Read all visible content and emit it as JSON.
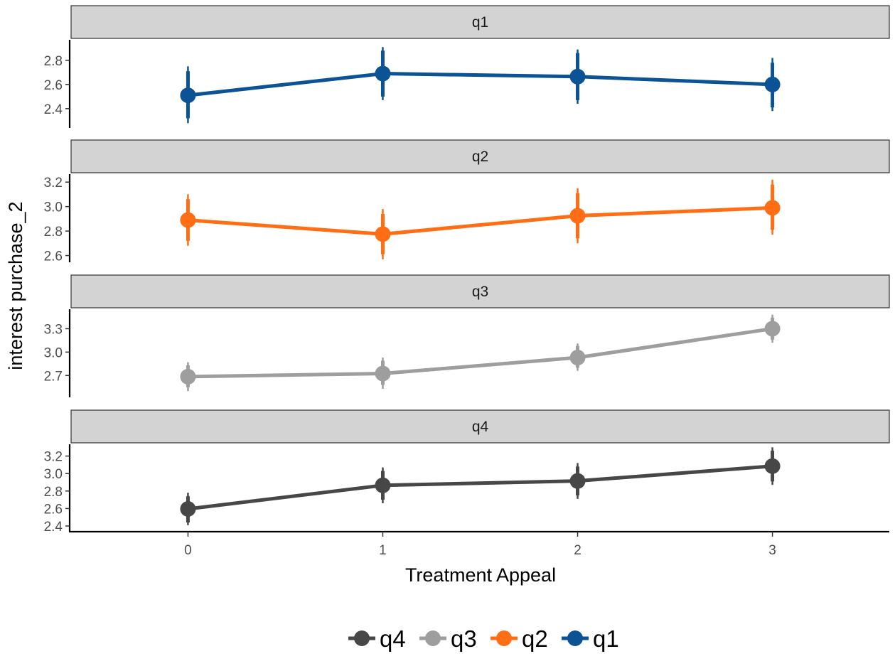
{
  "chart_data": {
    "type": "line",
    "xlabel": "Treatment Appeal",
    "ylabel": "interest purchase_2",
    "x": [
      0,
      1,
      2,
      3
    ],
    "xlim": [
      -0.6,
      3.6
    ],
    "legend_position": "bottom",
    "legend_order": [
      "q4",
      "q3",
      "q2",
      "q1"
    ],
    "panels": [
      {
        "strip": "q1",
        "color": "#0b5394",
        "ylim": [
          2.24,
          2.97
        ],
        "yticks": [
          2.4,
          2.6,
          2.8
        ],
        "ytick_labels": [
          "2.4",
          "2.6",
          "2.8"
        ],
        "values": [
          2.51,
          2.69,
          2.665,
          2.6
        ],
        "ci_inner": [
          [
            2.32,
            2.71
          ],
          [
            2.5,
            2.88
          ],
          [
            2.47,
            2.86
          ],
          [
            2.41,
            2.78
          ]
        ],
        "ci_outer": [
          [
            2.28,
            2.75
          ],
          [
            2.47,
            2.91
          ],
          [
            2.44,
            2.89
          ],
          [
            2.38,
            2.82
          ]
        ]
      },
      {
        "strip": "q2",
        "color": "#ff6e14",
        "ylim": [
          2.545,
          3.265
        ],
        "yticks": [
          2.6,
          2.8,
          3.0,
          3.2
        ],
        "ytick_labels": [
          "2.6",
          "2.8",
          "3.0",
          "3.2"
        ],
        "values": [
          2.89,
          2.775,
          2.925,
          2.99
        ],
        "ci_inner": [
          [
            2.72,
            3.06
          ],
          [
            2.61,
            2.94
          ],
          [
            2.74,
            3.11
          ],
          [
            2.81,
            3.18
          ]
        ],
        "ci_outer": [
          [
            2.68,
            3.1
          ],
          [
            2.57,
            2.98
          ],
          [
            2.7,
            3.15
          ],
          [
            2.77,
            3.22
          ]
        ]
      },
      {
        "strip": "q3",
        "color": "#9e9e9e",
        "ylim": [
          2.42,
          3.55
        ],
        "yticks": [
          2.7,
          3.0,
          3.3
        ],
        "ytick_labels": [
          "2.7",
          "3.0",
          "3.3"
        ],
        "values": [
          2.685,
          2.725,
          2.93,
          3.3
        ],
        "ci_inner": [
          [
            2.55,
            2.83
          ],
          [
            2.58,
            2.89
          ],
          [
            2.8,
            3.08
          ],
          [
            3.16,
            3.44
          ]
        ],
        "ci_outer": [
          [
            2.5,
            2.87
          ],
          [
            2.53,
            2.93
          ],
          [
            2.76,
            3.11
          ],
          [
            3.12,
            3.48
          ]
        ]
      },
      {
        "strip": "q4",
        "color": "#474747",
        "ylim": [
          2.335,
          3.335
        ],
        "yticks": [
          2.4,
          2.6,
          2.8,
          3.0,
          3.2
        ],
        "ytick_labels": [
          "2.4",
          "2.6",
          "2.8",
          "3.0",
          "3.2"
        ],
        "values": [
          2.595,
          2.865,
          2.915,
          3.085
        ],
        "ci_inner": [
          [
            2.44,
            2.74
          ],
          [
            2.7,
            3.03
          ],
          [
            2.75,
            3.08
          ],
          [
            2.91,
            3.26
          ]
        ],
        "ci_outer": [
          [
            2.41,
            2.78
          ],
          [
            2.66,
            3.07
          ],
          [
            2.71,
            3.12
          ],
          [
            2.87,
            3.3
          ]
        ]
      }
    ]
  },
  "legend": [
    {
      "label": "q4",
      "color": "#474747"
    },
    {
      "label": "q3",
      "color": "#9e9e9e"
    },
    {
      "label": "q2",
      "color": "#ff6e14"
    },
    {
      "label": "q1",
      "color": "#0b5394"
    }
  ]
}
